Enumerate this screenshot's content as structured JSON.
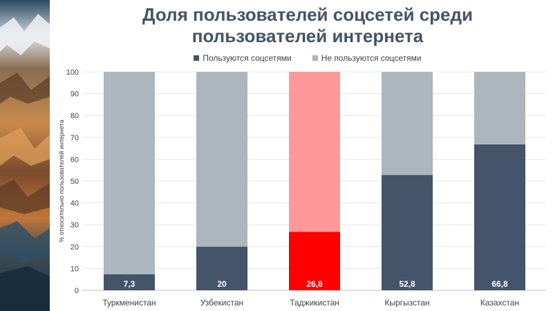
{
  "chart_data": {
    "type": "bar",
    "stacked": true,
    "title": "Доля пользователей соцсетей среди пользователей интернета",
    "ylabel": "% относительно пользователей интернета",
    "xlabel": "",
    "ylim": [
      0,
      100
    ],
    "yticks": [
      "0",
      "10",
      "20",
      "30",
      "40",
      "50",
      "60",
      "70",
      "80",
      "90",
      "100"
    ],
    "categories": [
      "Туркменистан",
      "Узбекистан",
      "Таджикистан",
      "Кыргызстан",
      "Казахстан"
    ],
    "series": [
      {
        "name": "Пользуются соцсетями",
        "values": [
          7.3,
          20,
          26.8,
          52.8,
          66.8
        ],
        "color": "#44546a",
        "data_labels": [
          "7,3",
          "20",
          "26,8",
          "52,8",
          "66,8"
        ]
      },
      {
        "name": "Не пользуются соцсетями",
        "values": [
          92.7,
          80,
          73.2,
          47.2,
          33.2
        ],
        "color": "#adb5bd"
      }
    ],
    "highlight": {
      "category": "Таджикистан",
      "colors": [
        "#ff0000",
        "#ff9999"
      ]
    },
    "legend_position": "top-center",
    "grid": true
  },
  "colors": {
    "title": "#44546a",
    "axis_text": "#404040",
    "grid": "#e6e6e6"
  }
}
